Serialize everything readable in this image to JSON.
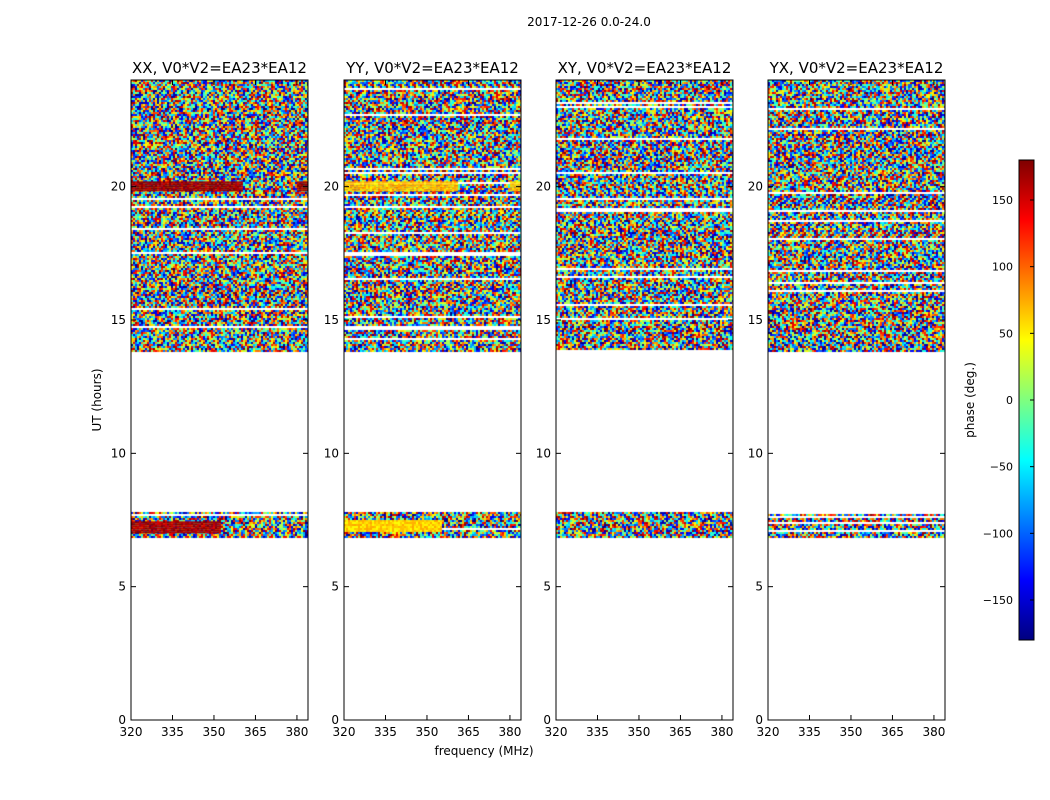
{
  "figure": {
    "suptitle": "2017-12-26 0.0-24.0",
    "xlabel": "frequency (MHz)",
    "ylabel": "UT (hours)"
  },
  "colorbar": {
    "label": "phase (deg.)",
    "range": [
      -180,
      180
    ],
    "ticks": [
      150,
      100,
      50,
      0,
      -50,
      -100,
      -150
    ],
    "tick_labels": [
      "150",
      "100",
      "50",
      "0",
      "−50",
      "−100",
      "−150"
    ],
    "colormap": "jet",
    "colormap_stops": [
      "#00007f",
      "#0000ff",
      "#007fff",
      "#00ffff",
      "#7fff7f",
      "#ffff00",
      "#ff7f00",
      "#ff0000",
      "#7f0000"
    ]
  },
  "chart_data": [
    {
      "type": "heatmap",
      "title": "XX, V0*V2=EA23*EA12",
      "xlabel": "",
      "ylabel": "UT (hours)",
      "xlim": [
        320,
        384
      ],
      "ylim": [
        0,
        24
      ],
      "xticks": [
        320,
        335,
        350,
        365,
        380
      ],
      "yticks": [
        0,
        5,
        10,
        15,
        20
      ],
      "value": "phase (deg.), noisy with horizontal flagged gaps",
      "data_ut_ranges": [
        [
          6.9,
          7.85
        ],
        [
          13.85,
          24.0
        ]
      ],
      "coherent_bands": [
        {
          "ut": [
            19.85,
            20.2
          ],
          "freq": [
            320,
            360
          ],
          "phase_deg": 170
        },
        {
          "ut": [
            19.85,
            20.2
          ],
          "freq": [
            380,
            384
          ],
          "phase_deg": 170
        },
        {
          "ut": [
            7.05,
            7.45
          ],
          "freq": [
            320,
            352
          ],
          "phase_deg": 165
        }
      ]
    },
    {
      "type": "heatmap",
      "title": "YY, V0*V2=EA23*EA12",
      "xlabel": "frequency (MHz)",
      "ylabel": "",
      "xlim": [
        320,
        384
      ],
      "ylim": [
        0,
        24
      ],
      "xticks": [
        320,
        335,
        350,
        365,
        380
      ],
      "yticks": [
        0,
        5,
        10,
        15,
        20
      ],
      "value": "phase (deg.), noisy with horizontal flagged gaps",
      "data_ut_ranges": [
        [
          6.9,
          7.85
        ],
        [
          13.85,
          24.0
        ]
      ],
      "coherent_bands": [
        {
          "ut": [
            19.85,
            20.2
          ],
          "freq": [
            320,
            361
          ],
          "phase_deg": 65
        },
        {
          "ut": [
            19.85,
            20.2
          ],
          "freq": [
            380,
            384
          ],
          "phase_deg": 65
        },
        {
          "ut": [
            7.05,
            7.5
          ],
          "freq": [
            320,
            355
          ],
          "phase_deg": 60
        }
      ]
    },
    {
      "type": "heatmap",
      "title": "XY, V0*V2=EA23*EA12",
      "xlabel": "",
      "ylabel": "",
      "xlim": [
        320,
        384
      ],
      "ylim": [
        0,
        24
      ],
      "xticks": [
        320,
        335,
        350,
        365,
        380
      ],
      "yticks": [
        0,
        5,
        10,
        15,
        20
      ],
      "value": "phase (deg.), noisy with horizontal flagged gaps",
      "data_ut_ranges": [
        [
          6.9,
          7.85
        ],
        [
          13.85,
          24.0
        ]
      ],
      "coherent_bands": []
    },
    {
      "type": "heatmap",
      "title": "YX, V0*V2=EA23*EA12",
      "xlabel": "",
      "ylabel": "",
      "xlim": [
        320,
        384
      ],
      "ylim": [
        0,
        24
      ],
      "xticks": [
        320,
        335,
        350,
        365,
        380
      ],
      "yticks": [
        0,
        5,
        10,
        15,
        20
      ],
      "value": "phase (deg.), noisy with horizontal flagged gaps",
      "data_ut_ranges": [
        [
          6.9,
          7.85
        ],
        [
          13.85,
          24.0
        ]
      ],
      "coherent_bands": []
    }
  ]
}
